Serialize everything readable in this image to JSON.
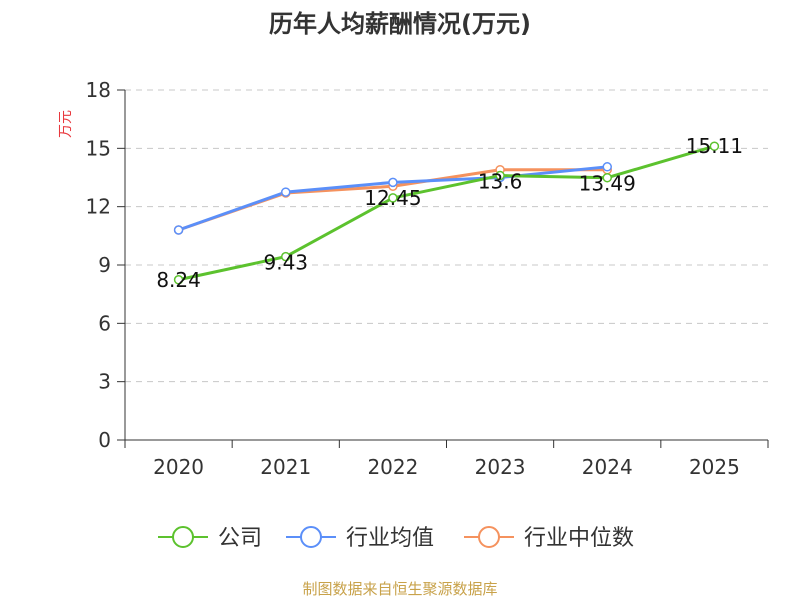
{
  "chart_data": {
    "type": "line",
    "title": "历年人均薪酬情况(万元)",
    "ylabel": "万元",
    "xlabel": "",
    "categories": [
      "2020",
      "2021",
      "2022",
      "2023",
      "2024",
      "2025"
    ],
    "ylim": [
      0,
      18
    ],
    "yticks": [
      "0",
      "3",
      "6",
      "9",
      "12",
      "15",
      "18"
    ],
    "grid": true,
    "legend_position": "bottom",
    "series": [
      {
        "name": "公司",
        "color": "#5cc22e",
        "values": [
          8.24,
          9.43,
          12.45,
          13.6,
          13.49,
          15.11
        ],
        "labels": [
          "8.24",
          "9.43",
          "12.45",
          "13.6",
          "13.49",
          "15.11"
        ]
      },
      {
        "name": "行业均值",
        "color": "#5b8ff9",
        "values": [
          10.8,
          12.75,
          13.25,
          13.5,
          14.05,
          null
        ]
      },
      {
        "name": "行业中位数",
        "color": "#f5925e",
        "values": [
          10.8,
          12.7,
          13.05,
          13.9,
          13.9,
          null
        ]
      }
    ],
    "ylabel_color": "#e8383d"
  },
  "source": {
    "text": "制图数据来自恒生聚源数据库",
    "color": "#c8a24a"
  }
}
